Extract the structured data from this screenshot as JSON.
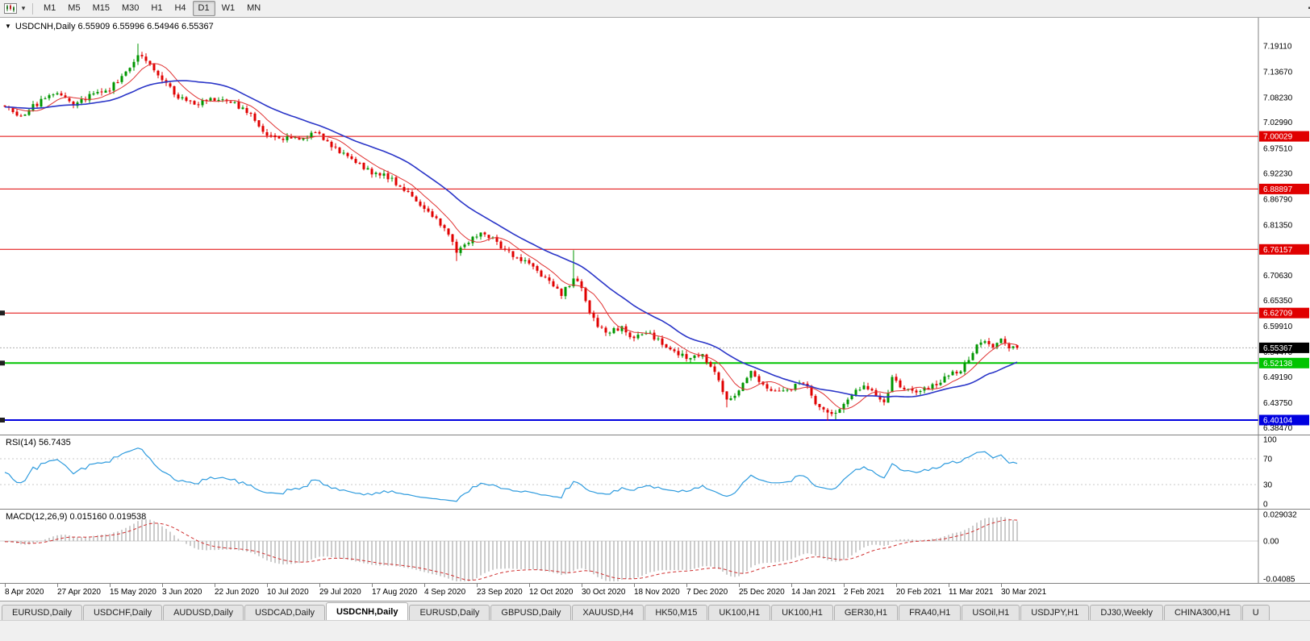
{
  "toolbar": {
    "timeframes": [
      "M1",
      "M5",
      "M15",
      "M30",
      "H1",
      "H4",
      "D1",
      "W1",
      "MN"
    ],
    "active_timeframe": "D1"
  },
  "chart": {
    "info_arrow": "▼",
    "symbol_info": "USDCNH,Daily 6.55909 6.55996 6.54946 6.55367",
    "price_ticks": [
      "7.19110",
      "7.13670",
      "7.08230",
      "7.02990",
      "6.97510",
      "6.92230",
      "6.86790",
      "6.81350",
      "6.75910",
      "6.70630",
      "6.65350",
      "6.59910",
      "6.54470",
      "6.49190",
      "6.43750",
      "6.38470"
    ],
    "levels": [
      {
        "value": 7.00029,
        "label": "7.00029",
        "color": "#E00000",
        "width": 1,
        "handle": false
      },
      {
        "value": 6.88897,
        "label": "6.88897",
        "color": "#E00000",
        "width": 1,
        "handle": false
      },
      {
        "value": 6.76157,
        "label": "6.76157",
        "color": "#E00000",
        "width": 1,
        "handle": false
      },
      {
        "value": 6.62709,
        "label": "6.62709",
        "color": "#E00000",
        "width": 1,
        "handle": true
      },
      {
        "value": 6.52138,
        "label": "6.52138",
        "color": "#00C400",
        "width": 2,
        "handle": true
      },
      {
        "value": 6.40104,
        "label": "6.40104",
        "color": "#0000E0",
        "width": 2,
        "handle": true
      }
    ],
    "current_price": {
      "value": 6.55367,
      "label": "6.55367",
      "bg": "#000000"
    }
  },
  "rsi_panel": {
    "label": "RSI(14) 56.7435",
    "line_color": "#2E9BDE",
    "ticks": [
      {
        "v": 100,
        "label": "100"
      },
      {
        "v": 70,
        "label": "70"
      },
      {
        "v": 30,
        "label": "30"
      },
      {
        "v": 0,
        "label": "0"
      }
    ]
  },
  "macd_panel": {
    "label": "MACD(12,26,9) 0.015160 0.019538",
    "ticks": [
      {
        "v": 0.029032,
        "label": "0.029032"
      },
      {
        "v": 0,
        "label": "0.00"
      },
      {
        "v": -0.04085,
        "label": "-0.04085"
      }
    ]
  },
  "time_axis": {
    "labels": [
      "8 Apr 2020",
      "27 Apr 2020",
      "15 May 2020",
      "3 Jun 2020",
      "22 Jun 2020",
      "10 Jul 2020",
      "29 Jul 2020",
      "17 Aug 2020",
      "4 Sep 2020",
      "23 Sep 2020",
      "12 Oct 2020",
      "30 Oct 2020",
      "18 Nov 2020",
      "7 Dec 2020",
      "25 Dec 2020",
      "14 Jan 2021",
      "2 Feb 2021",
      "20 Feb 2021",
      "11 Mar 2021",
      "30 Mar 2021"
    ]
  },
  "tabs": {
    "items": [
      {
        "label": "EURUSD,Daily",
        "active": false
      },
      {
        "label": "USDCHF,Daily",
        "active": false
      },
      {
        "label": "AUDUSD,Daily",
        "active": false
      },
      {
        "label": "USDCAD,Daily",
        "active": false
      },
      {
        "label": "USDCNH,Daily",
        "active": true
      },
      {
        "label": "EURUSD,Daily",
        "active": false
      },
      {
        "label": "GBPUSD,Daily",
        "active": false
      },
      {
        "label": "XAUUSD,H4",
        "active": false
      },
      {
        "label": "HK50,M15",
        "active": false
      },
      {
        "label": "UK100,H1",
        "active": false
      },
      {
        "label": "UK100,H1",
        "active": false
      },
      {
        "label": "GER30,H1",
        "active": false
      },
      {
        "label": "FRA40,H1",
        "active": false
      },
      {
        "label": "USOil,H1",
        "active": false
      },
      {
        "label": "USDJPY,H1",
        "active": false
      },
      {
        "label": "DJ30,Weekly",
        "active": false
      },
      {
        "label": "CHINA300,H1",
        "active": false
      },
      {
        "label": "U",
        "active": false
      }
    ]
  },
  "chart_data": {
    "type": "candlestick",
    "symbol": "USDCNH",
    "timeframe": "Daily",
    "visible_candles": 252,
    "price_range_top": 7.2524,
    "price_range_bottom": 6.3704,
    "last_ohlc": {
      "open": 6.55909,
      "high": 6.55996,
      "low": 6.54946,
      "close": 6.55367
    },
    "close_anchors": [
      [
        0,
        7.063
      ],
      [
        4,
        7.045
      ],
      [
        9,
        7.075
      ],
      [
        13,
        7.095
      ],
      [
        17,
        7.07
      ],
      [
        22,
        7.09
      ],
      [
        26,
        7.1
      ],
      [
        30,
        7.135
      ],
      [
        33,
        7.175
      ],
      [
        36,
        7.155
      ],
      [
        39,
        7.12
      ],
      [
        43,
        7.085
      ],
      [
        47,
        7.07
      ],
      [
        52,
        7.078
      ],
      [
        57,
        7.068
      ],
      [
        61,
        7.045
      ],
      [
        65,
        7.005
      ],
      [
        70,
        6.995
      ],
      [
        74,
        7.0
      ],
      [
        78,
        7.005
      ],
      [
        82,
        6.975
      ],
      [
        86,
        6.952
      ],
      [
        91,
        6.925
      ],
      [
        95,
        6.915
      ],
      [
        99,
        6.888
      ],
      [
        104,
        6.85
      ],
      [
        107,
        6.825
      ],
      [
        110,
        6.795
      ],
      [
        112,
        6.755
      ],
      [
        115,
        6.775
      ],
      [
        118,
        6.8
      ],
      [
        121,
        6.785
      ],
      [
        124,
        6.758
      ],
      [
        128,
        6.74
      ],
      [
        131,
        6.72
      ],
      [
        134,
        6.7
      ],
      [
        138,
        6.668
      ],
      [
        141,
        6.697
      ],
      [
        143,
        6.683
      ],
      [
        145,
        6.628
      ],
      [
        147,
        6.6
      ],
      [
        150,
        6.585
      ],
      [
        153,
        6.6
      ],
      [
        156,
        6.572
      ],
      [
        159,
        6.59
      ],
      [
        162,
        6.568
      ],
      [
        166,
        6.545
      ],
      [
        169,
        6.532
      ],
      [
        173,
        6.538
      ],
      [
        176,
        6.502
      ],
      [
        179,
        6.447
      ],
      [
        182,
        6.462
      ],
      [
        185,
        6.5
      ],
      [
        188,
        6.478
      ],
      [
        191,
        6.46
      ],
      [
        195,
        6.47
      ],
      [
        198,
        6.482
      ],
      [
        201,
        6.44
      ],
      [
        204,
        6.413
      ],
      [
        207,
        6.42
      ],
      [
        210,
        6.455
      ],
      [
        213,
        6.472
      ],
      [
        216,
        6.458
      ],
      [
        218,
        6.44
      ],
      [
        220,
        6.488
      ],
      [
        222,
        6.47
      ],
      [
        225,
        6.458
      ],
      [
        228,
        6.465
      ],
      [
        231,
        6.478
      ],
      [
        234,
        6.498
      ],
      [
        237,
        6.505
      ],
      [
        240,
        6.545
      ],
      [
        242,
        6.568
      ],
      [
        245,
        6.558
      ],
      [
        247,
        6.572
      ],
      [
        249,
        6.55
      ],
      [
        251,
        6.554
      ]
    ],
    "spike_highs": [
      [
        33,
        7.196
      ],
      [
        141,
        6.76
      ]
    ],
    "spike_lows": [
      [
        112,
        6.737
      ],
      [
        179,
        6.428
      ],
      [
        204,
        6.4
      ],
      [
        206,
        6.402
      ]
    ],
    "indicators": [
      {
        "name": "SMA",
        "period": 8,
        "color": "#E03232"
      },
      {
        "name": "SMA",
        "period": 25,
        "color": "#2A35C8"
      },
      {
        "name": "RSI",
        "period": 14,
        "value": 56.7435,
        "levels": [
          70,
          30
        ]
      },
      {
        "name": "MACD",
        "fast": 12,
        "slow": 26,
        "signal": 9,
        "values": [
          0.01516,
          0.019538
        ]
      }
    ]
  }
}
